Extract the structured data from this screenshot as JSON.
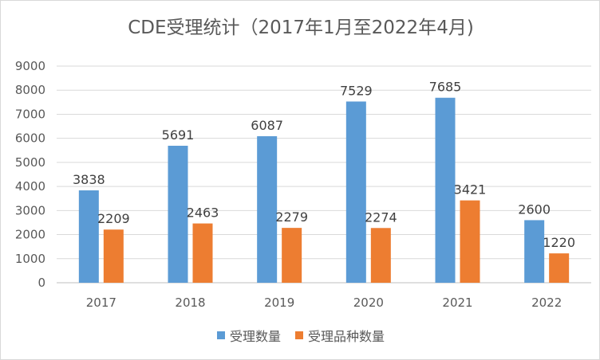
{
  "chart_data": {
    "type": "bar",
    "title": "CDE受理统计（2017年1月至2022年4月)",
    "categories": [
      "2017",
      "2018",
      "2019",
      "2020",
      "2021",
      "2022"
    ],
    "series": [
      {
        "name": "受理数量",
        "color": "#5b9bd5",
        "values": [
          3838,
          5691,
          6087,
          7529,
          7685,
          2600
        ]
      },
      {
        "name": "受理品种数量",
        "color": "#ed7d31",
        "values": [
          2209,
          2463,
          2279,
          2274,
          3421,
          1220
        ]
      }
    ],
    "ylim": [
      0,
      9000
    ],
    "yticks": [
      "0",
      "1000",
      "2000",
      "3000",
      "4000",
      "5000",
      "6000",
      "7000",
      "8000",
      "9000"
    ],
    "grid": true,
    "legend": "bottom"
  }
}
